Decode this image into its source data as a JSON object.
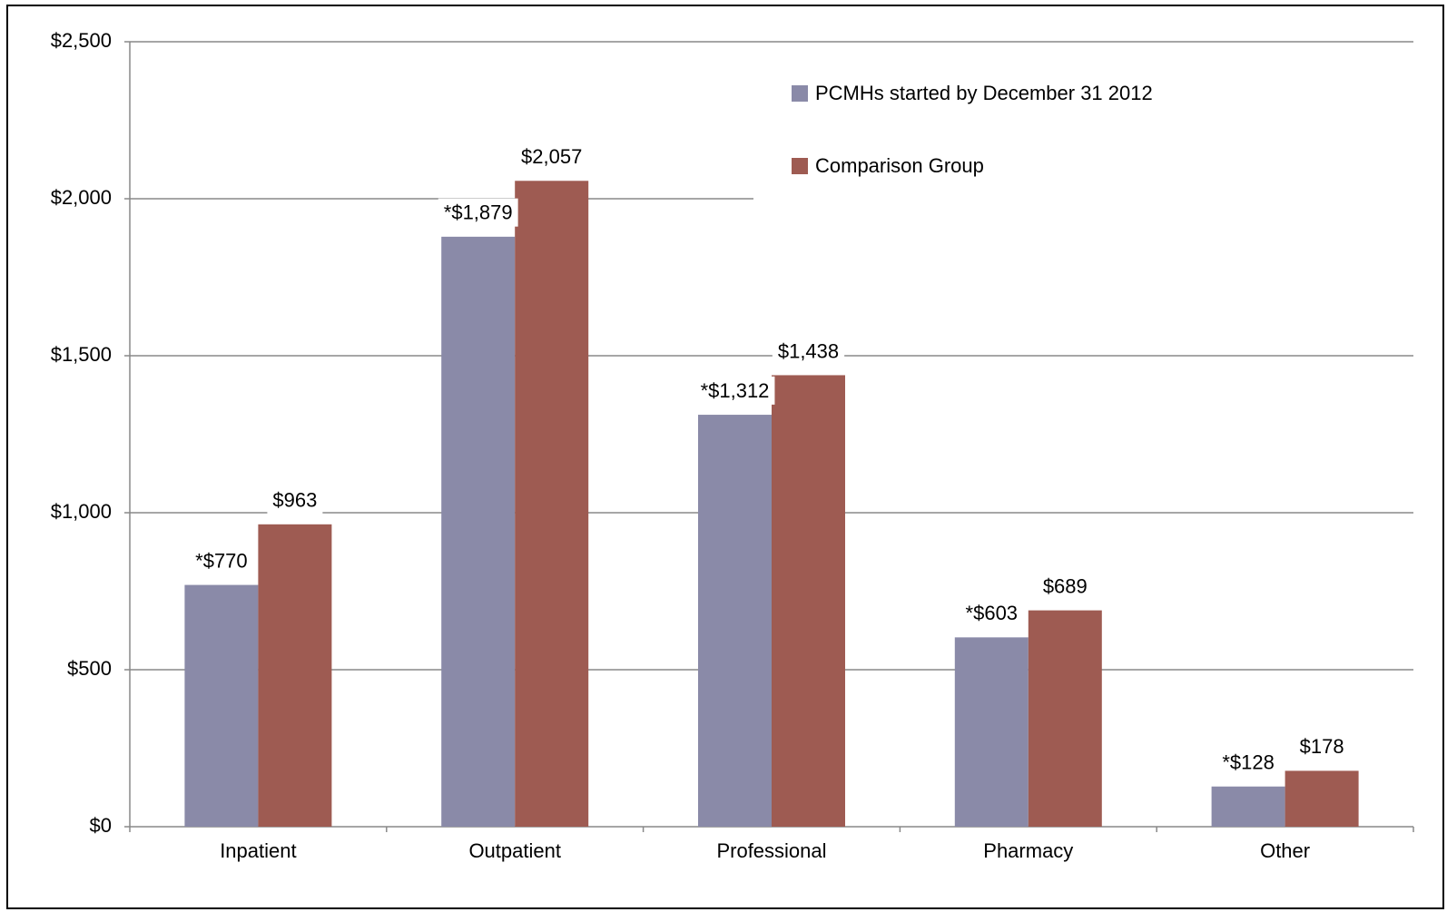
{
  "chart_data": {
    "type": "bar",
    "categories": [
      "Inpatient",
      "Outpatient",
      "Professional",
      "Pharmacy",
      "Other"
    ],
    "series": [
      {
        "name": "PCMHs started by December 31 2012",
        "color": "#8a8aa8",
        "values": [
          770,
          1879,
          1312,
          603,
          128
        ],
        "value_labels": [
          "*$770",
          "*$1,879",
          "*$1,312",
          "*$603",
          "*$128"
        ]
      },
      {
        "name": "Comparison Group",
        "color": "#9e5b52",
        "values": [
          963,
          2057,
          1438,
          689,
          178
        ],
        "value_labels": [
          "$963",
          "$2,057",
          "$1,438",
          "$689",
          "$178"
        ]
      }
    ],
    "ylim": [
      0,
      2500
    ],
    "yticks": [
      {
        "value": 0,
        "label": "$0"
      },
      {
        "value": 500,
        "label": "$500"
      },
      {
        "value": 1000,
        "label": "$1,000"
      },
      {
        "value": 1500,
        "label": "$1,500"
      },
      {
        "value": 2000,
        "label": "$2,000"
      },
      {
        "value": 2500,
        "label": "$2,500"
      }
    ],
    "grid": true,
    "legend": "top-right"
  }
}
